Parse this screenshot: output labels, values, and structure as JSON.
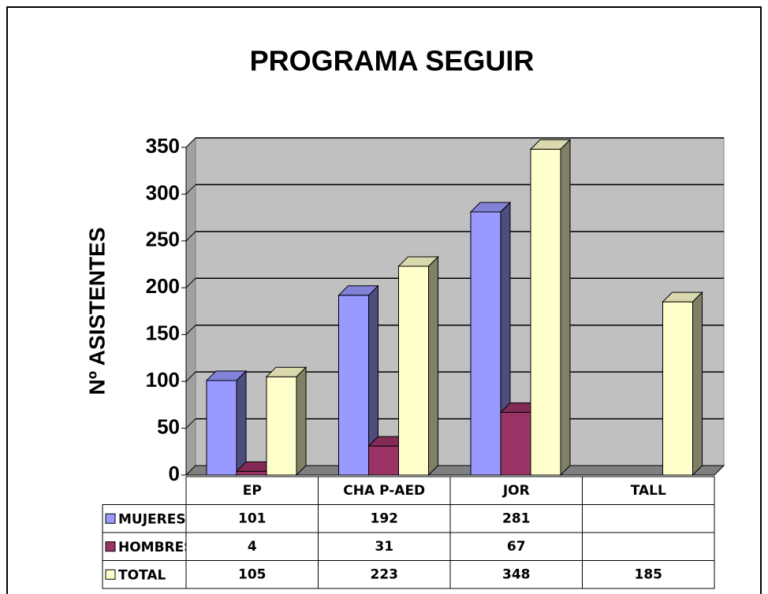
{
  "chart_data": {
    "type": "bar",
    "title": "PROGRAMA SEGUIR",
    "y_label": "Nº ASISTENTES",
    "categories": [
      "EP",
      "CHA P-AED",
      "JOR",
      "TALL"
    ],
    "series": [
      {
        "name": "MUJERES",
        "color": "#9999ff",
        "values": [
          101,
          192,
          281,
          null
        ]
      },
      {
        "name": "HOMBRES",
        "color": "#993366",
        "values": [
          4,
          31,
          67,
          null
        ]
      },
      {
        "name": "TOTAL",
        "color": "#ffffcc",
        "values": [
          105,
          223,
          348,
          185
        ]
      }
    ],
    "ylim": [
      0,
      350
    ],
    "yticks": [
      0,
      50,
      100,
      150,
      200,
      250,
      300,
      350
    ],
    "grid": true,
    "data_table": true
  }
}
